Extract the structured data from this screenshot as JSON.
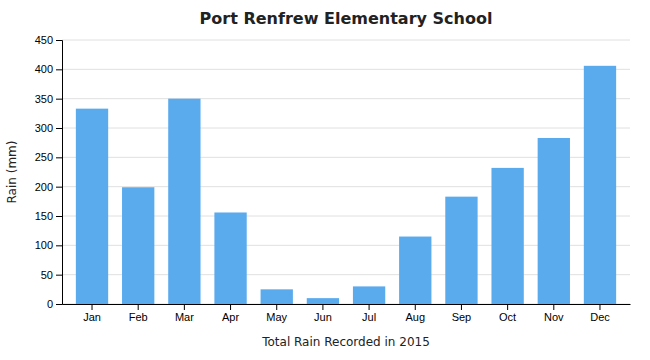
{
  "chart_data": {
    "type": "bar",
    "title": "Port Renfrew Elementary School",
    "xlabel": "Total Rain Recorded in 2015",
    "ylabel": "Rain (mm)",
    "categories": [
      "Jan",
      "Feb",
      "Mar",
      "Apr",
      "May",
      "Jun",
      "Jul",
      "Aug",
      "Sep",
      "Oct",
      "Nov",
      "Dec"
    ],
    "values": [
      333,
      199,
      350,
      156,
      25,
      10,
      30,
      115,
      183,
      232,
      283,
      406
    ],
    "color": "#5aabee",
    "ylim": [
      0,
      450
    ],
    "yticks": [
      0,
      50,
      100,
      150,
      200,
      250,
      300,
      350,
      400,
      450
    ],
    "grid": true
  }
}
